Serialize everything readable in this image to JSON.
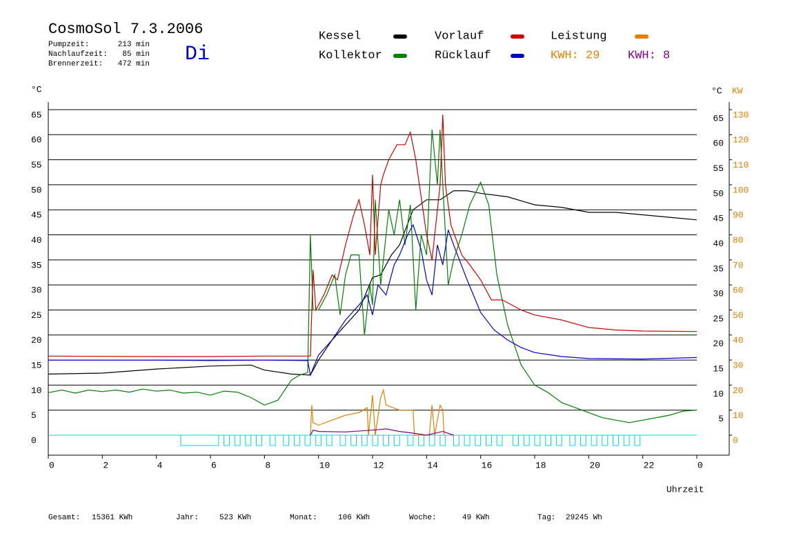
{
  "header": {
    "title": "CosmoSol 7.3.2006",
    "day": "Di",
    "stats": [
      [
        "Pumpzeit:",
        "213 min"
      ],
      [
        "Nachlaufzeit:",
        "85 min"
      ],
      [
        "Brennerzeit:",
        "472 min"
      ]
    ]
  },
  "footer": [
    [
      "Gesamt:",
      "15361 KWh"
    ],
    [
      "Jahr:",
      "523 KWh"
    ],
    [
      "Monat:",
      "106 KWh"
    ],
    [
      "Woche:",
      "49 KWh"
    ],
    [
      "Tag:",
      "29245 Wh"
    ]
  ],
  "chart_data": {
    "type": "line",
    "y_unit": "°C",
    "y2_unit_c": "°C",
    "y2_unit": "KW",
    "xlabel": "Uhrzeit",
    "xlim": [
      0,
      24
    ],
    "xticks": [
      0,
      2,
      4,
      6,
      8,
      10,
      12,
      14,
      16,
      18,
      20,
      22,
      {
        "value": 24,
        "label": "0"
      }
    ],
    "ylim": [
      -4,
      67
    ],
    "yticks": [
      0,
      5,
      10,
      15,
      20,
      25,
      30,
      35,
      40,
      45,
      50,
      55,
      60,
      65
    ],
    "yticks_right": [
      5,
      10,
      15,
      20,
      25,
      30,
      35,
      40,
      45,
      50,
      55,
      60,
      65
    ],
    "y2lim": [
      -8,
      134
    ],
    "y2ticks": [
      0,
      10,
      20,
      30,
      40,
      50,
      60,
      70,
      80,
      90,
      100,
      110,
      120,
      130
    ],
    "y2color": "#e08000",
    "grid": true,
    "grid_color": "#000000",
    "baseline_color": "#00d8d8",
    "series": [
      {
        "name": "Kessel",
        "color": "#000000",
        "x": [
          0,
          2,
          4,
          6,
          7.5,
          8,
          9,
          9.7,
          10,
          10.5,
          11,
          11.5,
          12,
          12.3,
          12.7,
          13,
          13.5,
          14,
          14.5,
          15,
          15.5,
          16,
          17,
          18,
          19,
          20,
          21,
          22,
          23,
          24
        ],
        "values": [
          12.2,
          12.4,
          13.2,
          13.8,
          14,
          13,
          12.2,
          12,
          15,
          19,
          22,
          25,
          31.5,
          32,
          36,
          38,
          45,
          47,
          47,
          48.8,
          48.8,
          48.3,
          47.6,
          46,
          45.5,
          44.5,
          44.5,
          44,
          43.5,
          43
        ]
      },
      {
        "name": "Kollektor",
        "color": "#008000",
        "x": [
          0,
          0.5,
          1,
          1.5,
          2,
          2.5,
          3,
          3.5,
          4,
          4.5,
          5,
          5.5,
          6,
          6.5,
          7,
          7.5,
          8,
          8.5,
          9,
          9.3,
          9.6,
          9.7,
          9.8,
          10,
          10.3,
          10.6,
          10.8,
          11,
          11.2,
          11.5,
          11.7,
          11.9,
          12,
          12.1,
          12.3,
          12.6,
          12.8,
          13,
          13.2,
          13.4,
          13.6,
          13.8,
          14,
          14.2,
          14.4,
          14.5,
          14.6,
          14.8,
          15,
          15.3,
          15.6,
          16,
          16.3,
          16.6,
          17,
          17.5,
          18,
          18.5,
          19,
          19.5,
          20,
          20.5,
          21,
          21.5,
          22,
          22.5,
          23,
          23.5,
          24
        ],
        "values": [
          8.5,
          9,
          8.4,
          9,
          8.7,
          9,
          8.6,
          9.2,
          8.8,
          9,
          8.4,
          8.6,
          8,
          8.8,
          8.6,
          7.5,
          6,
          7,
          11,
          12,
          12.5,
          40,
          25,
          25,
          28,
          32,
          24,
          32,
          36,
          36,
          20,
          30,
          26,
          47,
          30,
          45,
          40,
          47,
          38,
          46,
          25,
          40,
          36,
          61,
          50,
          61,
          50,
          30,
          35,
          40,
          46,
          50.5,
          46,
          32,
          22,
          14,
          10,
          8.5,
          6.5,
          5.5,
          4.5,
          3.5,
          3,
          2.5,
          3,
          3.5,
          4,
          4.8,
          5
        ]
      },
      {
        "name": "Vorlauf",
        "color": "#d00000",
        "x": [
          0,
          4,
          6,
          8,
          9.7,
          9.8,
          9.9,
          10.2,
          10.5,
          10.7,
          11,
          11.3,
          11.5,
          11.7,
          11.9,
          12,
          12.1,
          12.3,
          12.4,
          12.6,
          12.9,
          13.2,
          13.4,
          13.6,
          14,
          14.2,
          14.5,
          14.6,
          14.7,
          14.9,
          15.3,
          15.6,
          16,
          16.4,
          16.8,
          17.5,
          18,
          19,
          20,
          21,
          22,
          24
        ],
        "values": [
          15.8,
          15.7,
          15.7,
          15.8,
          15.8,
          33,
          25,
          28,
          32,
          31,
          38,
          44,
          47,
          42,
          36,
          52,
          36,
          50,
          52,
          55,
          58,
          58,
          60.5,
          55,
          40,
          35,
          50,
          64,
          50,
          42,
          36,
          34,
          31,
          27,
          27,
          25,
          24,
          23,
          21.5,
          21,
          20.8,
          20.7
        ]
      },
      {
        "name": "Rücklauf",
        "color": "#0000d0",
        "x": [
          0,
          4,
          6,
          8,
          9.6,
          9.7,
          10,
          10.5,
          11,
          11.5,
          11.8,
          12,
          12.2,
          12.5,
          12.8,
          13,
          13.3,
          13.5,
          13.8,
          14,
          14.2,
          14.4,
          14.6,
          14.8,
          15,
          15.5,
          16,
          16.5,
          17,
          17.5,
          18,
          19,
          20,
          22,
          24
        ],
        "values": [
          15,
          15,
          14.9,
          15,
          14.9,
          12,
          16,
          19,
          23,
          26,
          28,
          24,
          30,
          28,
          34,
          36,
          40,
          42,
          37,
          31,
          28,
          38,
          34,
          41,
          38,
          31,
          24.5,
          21,
          19,
          17.5,
          16.5,
          15.7,
          15.3,
          15.2,
          15.5
        ]
      },
      {
        "name": "Leistung",
        "color": "#e08000",
        "axis": "y2",
        "x": [
          9.7,
          9.75,
          9.8,
          10,
          10.5,
          11,
          11.5,
          11.8,
          11.85,
          12,
          12.1,
          12.3,
          12.4,
          12.5,
          13,
          13.5,
          13.55,
          14.1,
          14.2,
          14.3,
          14.5,
          14.6,
          14.65
        ],
        "values": [
          0,
          12,
          5,
          4,
          6,
          8,
          9,
          11,
          0,
          16,
          0,
          15,
          18,
          12,
          10,
          10,
          0,
          0,
          12,
          0,
          12,
          10,
          0
        ]
      },
      {
        "color": "#800080",
        "axis": "y2",
        "x": [
          9.7,
          9.8,
          10,
          11,
          12,
          12.5,
          13,
          13.5,
          14,
          14.6,
          15
        ],
        "values": [
          0,
          2,
          1.5,
          1.3,
          2,
          2.5,
          1.5,
          0.8,
          0,
          1.5,
          0
        ]
      }
    ],
    "kwh_labels": [
      {
        "text": "KWH: 29",
        "color": "#e08000"
      },
      {
        "text": "KWH: 8",
        "color": "#800080"
      }
    ],
    "pump_on": [
      [
        4.9,
        6.3
      ],
      [
        6.5,
        6.7
      ],
      [
        6.9,
        7.1
      ],
      [
        7.3,
        7.5
      ],
      [
        7.7,
        7.9
      ],
      [
        8.2,
        8.4
      ],
      [
        8.7,
        8.9
      ],
      [
        9.1,
        9.3
      ],
      [
        9.5,
        9.7
      ],
      [
        9.9,
        10.1
      ],
      [
        10.3,
        10.5
      ],
      [
        10.8,
        11
      ],
      [
        11.2,
        11.4
      ],
      [
        11.6,
        11.8
      ],
      [
        12,
        12.2
      ],
      [
        12.4,
        12.6
      ],
      [
        12.8,
        13
      ],
      [
        13.3,
        13.5
      ],
      [
        13.7,
        13.9
      ],
      [
        14.1,
        14.3
      ],
      [
        14.5,
        14.7
      ],
      [
        15,
        15.2
      ],
      [
        15.4,
        15.6
      ],
      [
        15.8,
        16
      ],
      [
        16.2,
        16.4
      ],
      [
        16.6,
        16.8
      ],
      [
        17.2,
        17.4
      ],
      [
        17.6,
        17.8
      ],
      [
        18,
        18.2
      ],
      [
        18.4,
        18.6
      ],
      [
        18.8,
        19
      ],
      [
        19.3,
        19.5
      ],
      [
        19.7,
        19.9
      ],
      [
        20.1,
        20.3
      ],
      [
        20.5,
        20.7
      ],
      [
        20.9,
        21.1
      ],
      [
        21.3,
        21.5
      ],
      [
        21.7,
        21.9
      ]
    ]
  }
}
